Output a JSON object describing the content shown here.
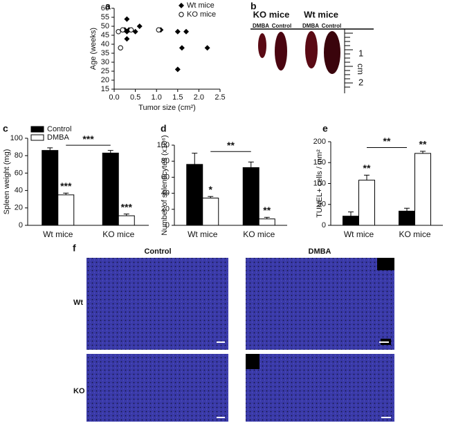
{
  "figure": {
    "panel_labels": [
      "a",
      "b",
      "c",
      "d",
      "e",
      "f"
    ],
    "photo_b": {
      "groups": [
        {
          "title": "KO mice",
          "columns": [
            "DMBA",
            "Control"
          ]
        },
        {
          "title": "Wt mice",
          "columns": [
            "DMBA",
            "Control"
          ]
        }
      ],
      "ruler": [
        "1",
        "cm",
        "2"
      ]
    },
    "micrographs": {
      "columns": [
        "Control",
        "DMBA"
      ],
      "rows": [
        "Wt",
        "KO"
      ]
    }
  },
  "chart_data": [
    {
      "type": "scatter",
      "xlabel": "Tumor size (cm²)",
      "ylabel": "Age (weeks)",
      "xlim": [
        0,
        2.5
      ],
      "xticks": [
        {
          "value": 0,
          "label": "0.0"
        },
        0.5,
        {
          "value": 1,
          "label": "1.0"
        },
        1.5,
        {
          "value": 2,
          "label": "2.0"
        },
        2.5
      ],
      "ylim": [
        15,
        60
      ],
      "yticks": [
        15,
        20,
        25,
        30,
        35,
        40,
        45,
        50,
        55,
        60
      ],
      "legend": "upper right",
      "series": [
        {
          "name": "Wt mice",
          "color": "#000000",
          "marker": "diamond",
          "x": [
            0.25,
            0.3,
            0.3,
            0.3,
            0.35,
            0.5,
            0.6,
            1.1,
            1.5,
            1.6,
            1.7,
            1.5,
            2.2
          ],
          "values": [
            48,
            54,
            47,
            43,
            48,
            47,
            50,
            48,
            47,
            38,
            47,
            26,
            38
          ]
        },
        {
          "name": "KO mice",
          "color": "#000000",
          "marker": "open-circle",
          "x": [
            0.1,
            0.15,
            0.2,
            0.4,
            1.05
          ],
          "values": [
            47,
            38,
            48,
            48,
            48
          ]
        }
      ]
    },
    {
      "type": "bar",
      "ylabel": "Spleen weight (mg)",
      "categories": [
        "Wt mice",
        "KO mice"
      ],
      "ylim": [
        0,
        100
      ],
      "yticks": [
        0,
        20,
        40,
        60,
        80,
        100
      ],
      "legend": "upper left",
      "bracket_label": "***",
      "series": [
        {
          "name": "Control",
          "color": "#000000",
          "values": [
            86,
            83
          ],
          "errors": [
            3,
            3
          ]
        },
        {
          "name": "DMBA",
          "color": "#ffffff",
          "values": [
            35,
            11
          ],
          "errors": [
            2,
            2
          ],
          "annotations": [
            "***",
            "***"
          ]
        }
      ]
    },
    {
      "type": "bar",
      "ylabel": "Number of splenocytes (x10⁶)",
      "categories": [
        "Wt mice",
        "KO mice"
      ],
      "ylim": [
        0,
        100
      ],
      "yticks": [
        0,
        20,
        40,
        60,
        80,
        100
      ],
      "bracket_label": "**",
      "series": [
        {
          "color": "#000000",
          "values": [
            76,
            72
          ],
          "errors": [
            14,
            7
          ]
        },
        {
          "color": "#ffffff",
          "values": [
            34,
            8
          ],
          "errors": [
            2,
            2
          ],
          "annotations": [
            "*",
            "**"
          ]
        }
      ]
    },
    {
      "type": "bar",
      "ylabel": "TUNEL+ cells / mm²",
      "categories": [
        "Wt mice",
        "KO mice"
      ],
      "ylim": [
        0,
        200
      ],
      "yticks": [
        0,
        50,
        100,
        150,
        200
      ],
      "bracket_label": "**",
      "series": [
        {
          "color": "#000000",
          "values": [
            22,
            34
          ],
          "errors": [
            10,
            7
          ]
        },
        {
          "color": "#ffffff",
          "values": [
            108,
            172
          ],
          "errors": [
            12,
            5
          ],
          "annotations": [
            "**",
            "**"
          ]
        }
      ]
    }
  ]
}
